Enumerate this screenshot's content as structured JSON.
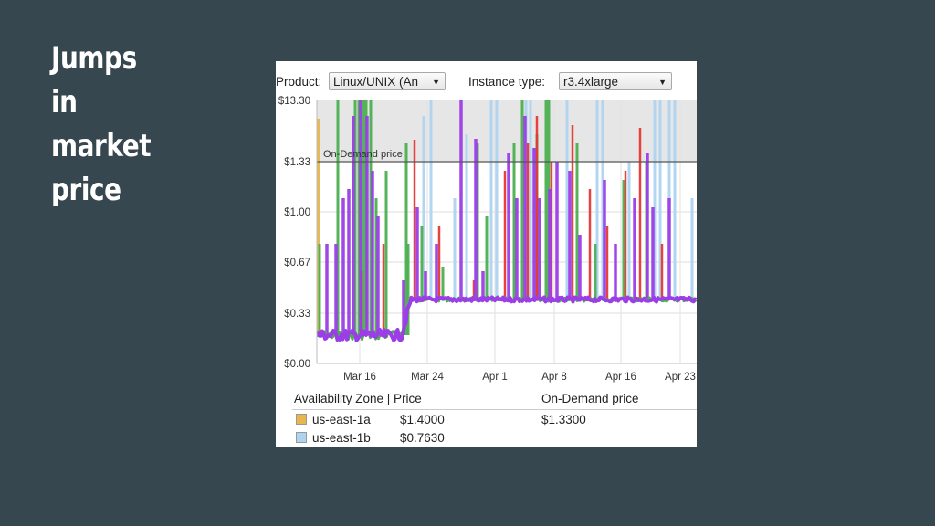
{
  "slide": {
    "title_lines": [
      "Jumps",
      "in",
      "market",
      "price"
    ]
  },
  "controls": {
    "product_label": "Product:",
    "product_value": "Linux/UNIX (An",
    "instance_label": "Instance type:",
    "instance_value": "r3.4xlarge"
  },
  "legend": {
    "header_zone": "Availability Zone | Price",
    "header_ondemand": "On-Demand price",
    "rows": [
      {
        "zone": "us-east-1a",
        "price": "$1.4000",
        "ondemand": "$1.3300",
        "color": "#e8b64a"
      },
      {
        "zone": "us-east-1b",
        "price": "$0.7630",
        "ondemand": "",
        "color": "#aed4f0"
      }
    ]
  },
  "chart_data": {
    "type": "line",
    "on_demand_label": "On-Demand price",
    "on_demand_value": 1.33,
    "y_ticks": [
      "$13.30",
      "$1.33",
      "$1.00",
      "$0.67",
      "$0.33",
      "$0.00"
    ],
    "x_ticks": [
      "Mar 16",
      "Mar 24",
      "Apr 1",
      "Apr 8",
      "Apr 16",
      "Apr 23"
    ],
    "series": [
      {
        "name": "us-east-1a",
        "color": "#e8b64a"
      },
      {
        "name": "us-east-1b",
        "color": "#aed4f0"
      },
      {
        "color": "#4caf50"
      },
      {
        "color": "#e53935"
      },
      {
        "color": "#9c3de8"
      }
    ]
  }
}
